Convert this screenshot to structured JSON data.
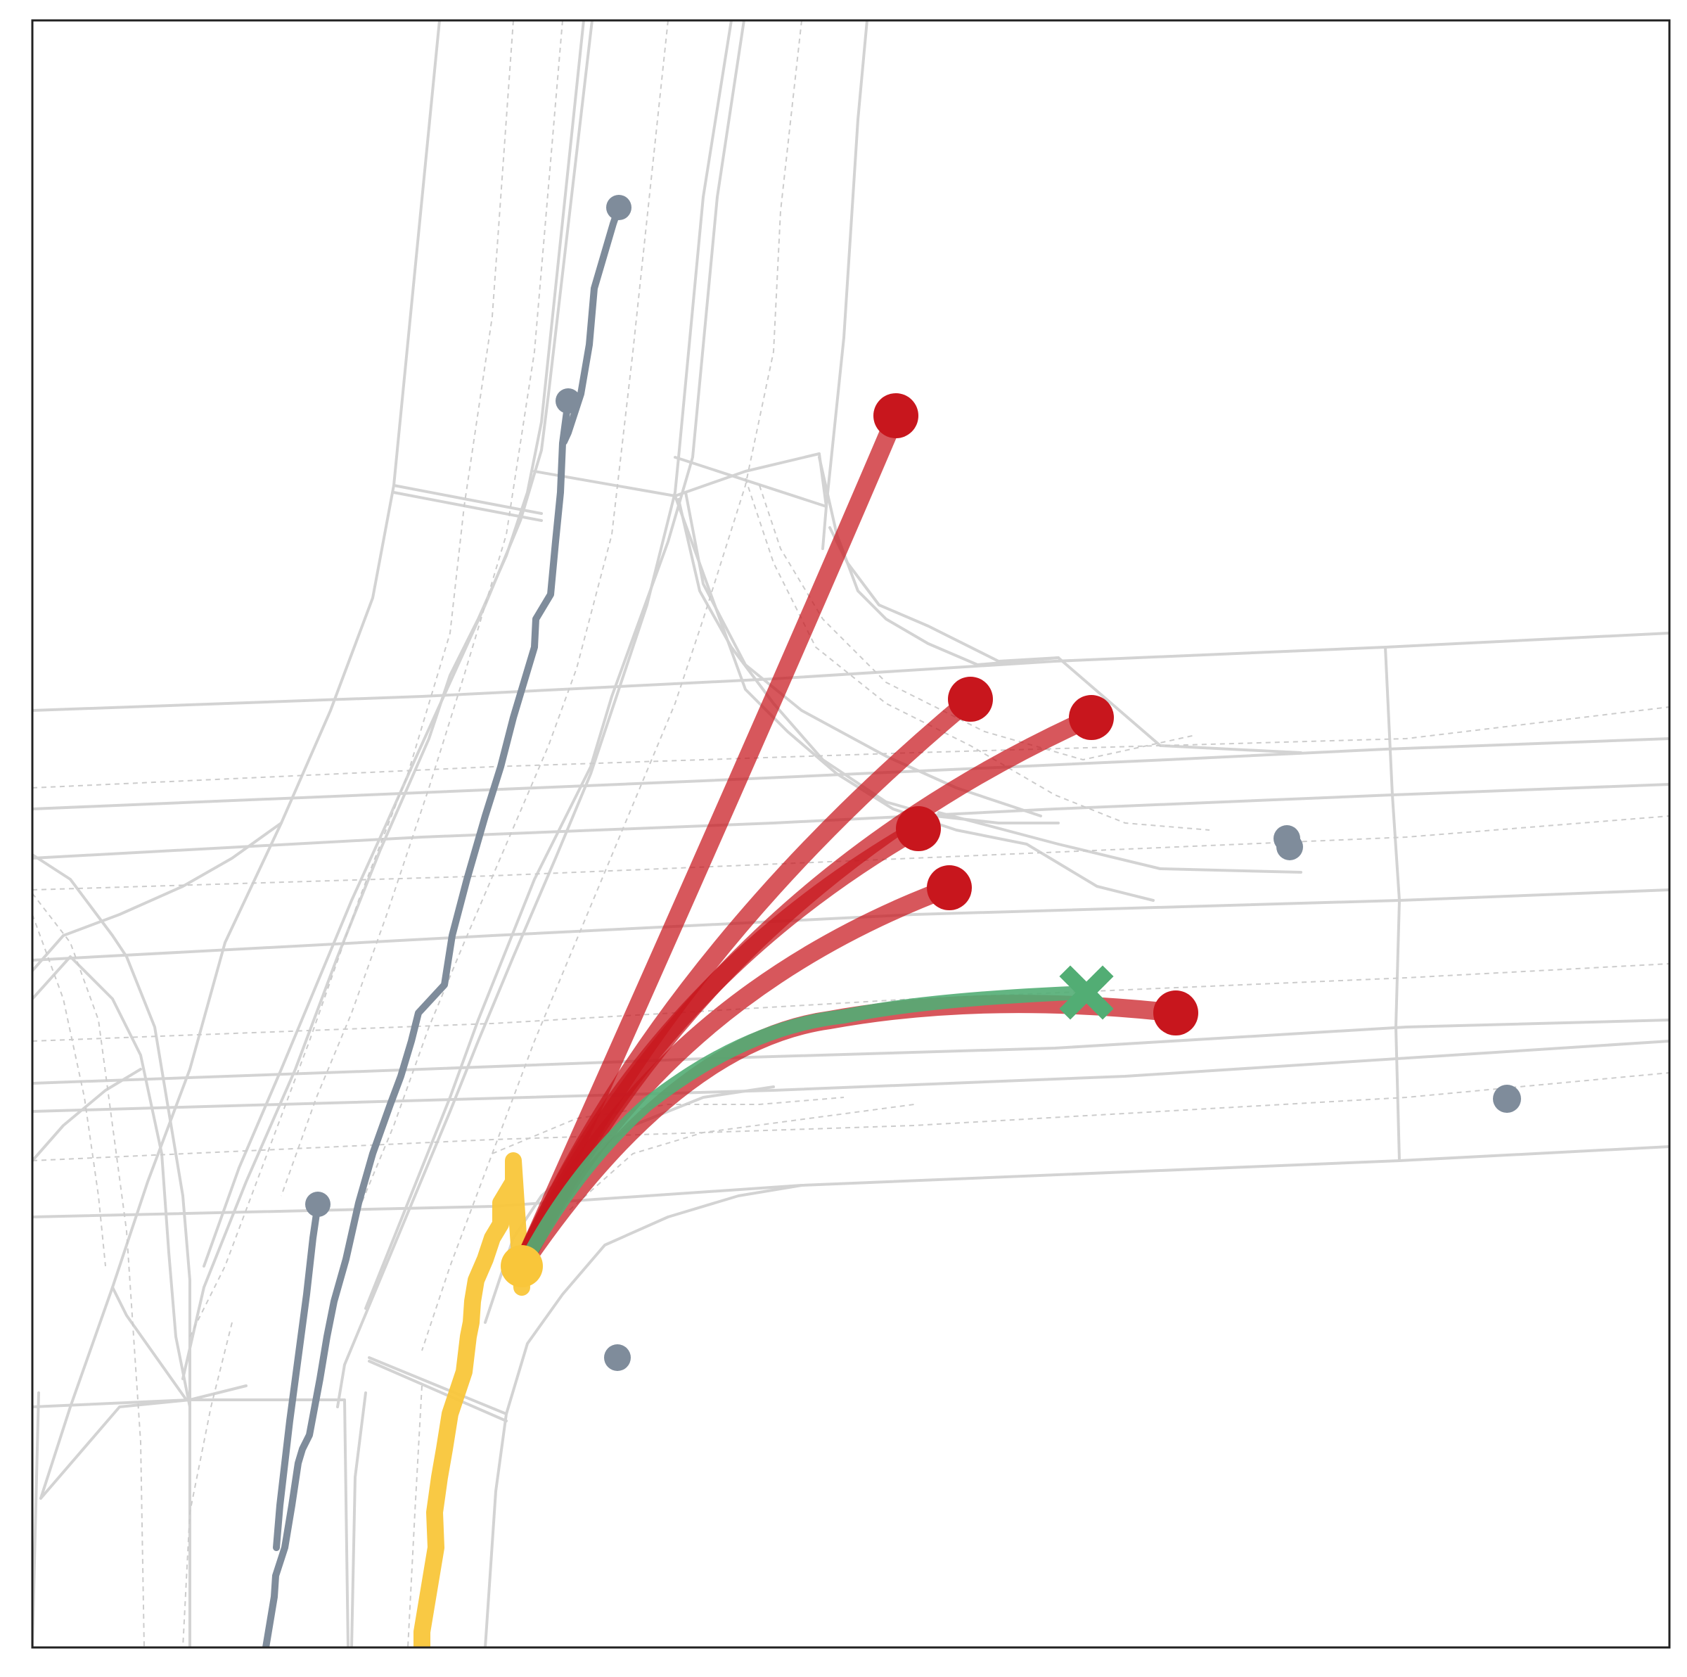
{
  "colors": {
    "background": "#ffffff",
    "frame": "#222222",
    "road_edge": "#d3d3d3",
    "lane_center": "#cccccc",
    "other_agent": "#7f8c9b",
    "ego_history": "#f9c63a",
    "prediction": "#c8161d",
    "ground_truth": "#52ad74"
  },
  "legend": [],
  "markers": {
    "ego_current": "ego-position-dot",
    "prediction_endpoint": "predicted-endpoint-dot",
    "ground_truth_endpoint": "ground-truth-x-marker"
  },
  "scene": {
    "ego_agent": {
      "mode": "turning-right",
      "history": "observed"
    },
    "predicted_modes": 6,
    "other_agents": 7
  }
}
